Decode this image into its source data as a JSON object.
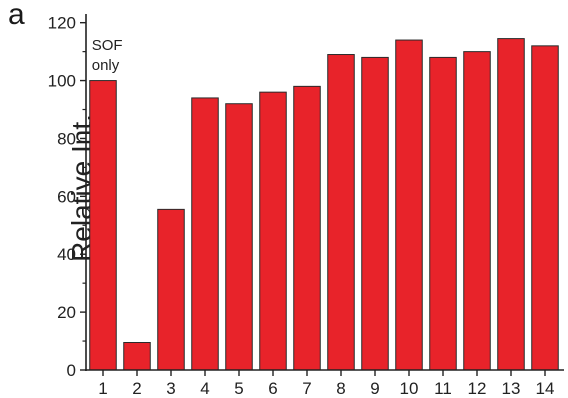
{
  "panel_label": "a",
  "chart_data": {
    "type": "bar",
    "categories": [
      "1",
      "2",
      "3",
      "4",
      "5",
      "6",
      "7",
      "8",
      "9",
      "10",
      "11",
      "12",
      "13",
      "14"
    ],
    "values": [
      100,
      9.5,
      55.5,
      94,
      92,
      96,
      98,
      109,
      108,
      114,
      108,
      110,
      114.5,
      112
    ],
    "ylabel": "Relative Int.",
    "xlabel": "",
    "ylim": [
      0,
      123
    ],
    "yticks": [
      0,
      20,
      40,
      60,
      80,
      100,
      120
    ],
    "annotation": "SOF only",
    "grid": false,
    "colors": {
      "bar_fill": "#e8232a",
      "bar_stroke": "#2a2a2a",
      "axis": "#222222",
      "text": "#222222"
    }
  }
}
